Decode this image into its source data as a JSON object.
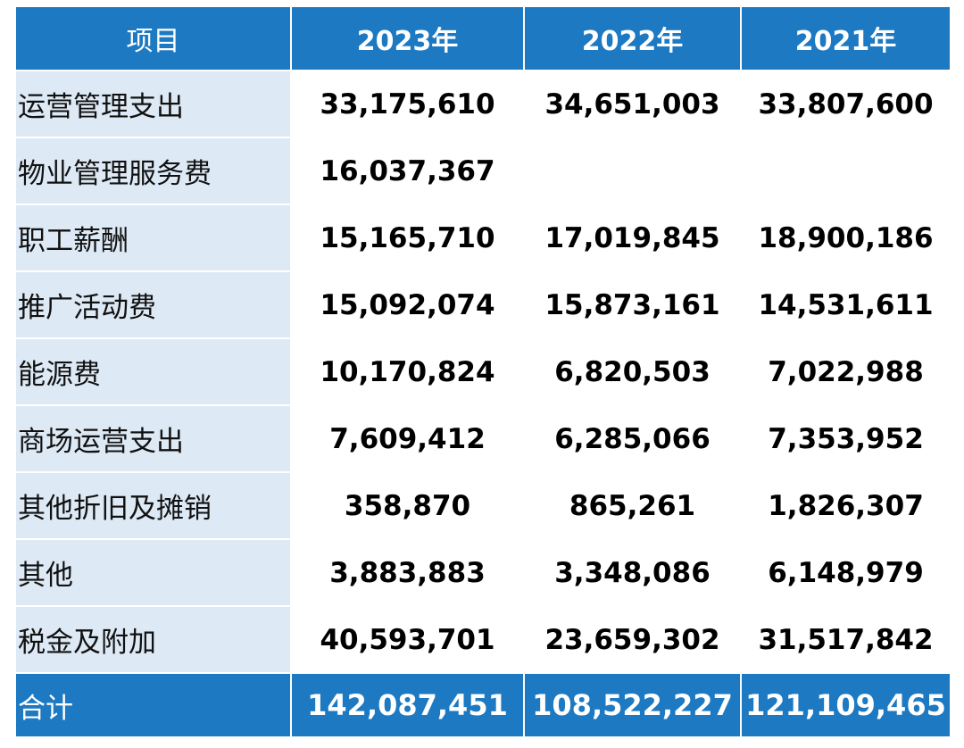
{
  "header": {
    "item": "项目",
    "years": [
      "2023年",
      "2022年",
      "2021年"
    ]
  },
  "rows": [
    {
      "label": "运营管理支出",
      "values": [
        "33,175,610",
        "34,651,003",
        "33,807,600"
      ]
    },
    {
      "label": "物业管理服务费",
      "values": [
        "16,037,367",
        "",
        ""
      ]
    },
    {
      "label": "职工薪酬",
      "values": [
        "15,165,710",
        "17,019,845",
        "18,900,186"
      ]
    },
    {
      "label": "推广活动费",
      "values": [
        "15,092,074",
        "15,873,161",
        "14,531,611"
      ]
    },
    {
      "label": "能源费",
      "values": [
        "10,170,824",
        "6,820,503",
        "7,022,988"
      ]
    },
    {
      "label": "商场运营支出",
      "values": [
        "7,609,412",
        "6,285,066",
        "7,353,952"
      ]
    },
    {
      "label": "其他折旧及摊销",
      "values": [
        "358,870",
        "865,261",
        "1,826,307"
      ]
    },
    {
      "label": "其他",
      "values": [
        "3,883,883",
        "3,348,086",
        "6,148,979"
      ]
    },
    {
      "label": "税金及附加",
      "values": [
        "40,593,701",
        "23,659,302",
        "31,517,842"
      ]
    }
  ],
  "total": {
    "label": "合计",
    "values": [
      "142,087,451",
      "108,522,227",
      "121,109,465"
    ]
  },
  "colors": {
    "header_bg": "#1c79c2",
    "label_bg": "#dde9f5"
  }
}
